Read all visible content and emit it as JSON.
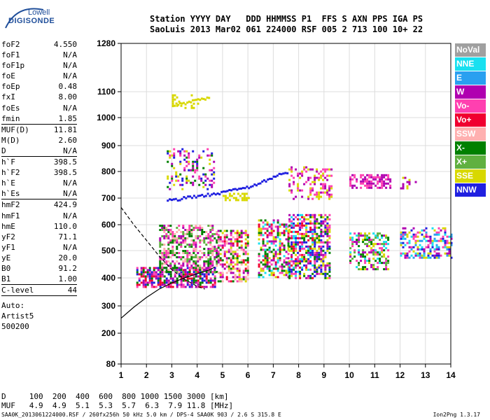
{
  "logo": {
    "line1": "Lowell",
    "line2": "DIGISONDE"
  },
  "header": {
    "row1": "Station YYYY DAY   DDD HHMMSS P1  FFS S AXN PPS IGA PS",
    "row2": "SaoLuis 2013 Mar02 061 224000 RSF 005 2 713 100 10+ 22"
  },
  "params_groups": [
    [
      {
        "key": "foF2",
        "value": "4.550"
      },
      {
        "key": "foF1",
        "value": "N/A"
      },
      {
        "key": "foF1p",
        "value": "N/A"
      },
      {
        "key": "foE",
        "value": "N/A"
      },
      {
        "key": "foEp",
        "value": "0.48"
      },
      {
        "key": "fxI",
        "value": "8.00"
      },
      {
        "key": "foEs",
        "value": "N/A"
      },
      {
        "key": "fmin",
        "value": "1.85"
      }
    ],
    [
      {
        "key": "MUF(D)",
        "value": "11.81"
      },
      {
        "key": "M(D)",
        "value": "2.60"
      },
      {
        "key": "D",
        "value": "N/A"
      }
    ],
    [
      {
        "key": "h`F",
        "value": "398.5"
      },
      {
        "key": "h`F2",
        "value": "398.5"
      },
      {
        "key": "h`E",
        "value": "N/A"
      },
      {
        "key": "h`Es",
        "value": "N/A"
      }
    ],
    [
      {
        "key": "hmF2",
        "value": "424.9"
      },
      {
        "key": "hmF1",
        "value": "N/A"
      },
      {
        "key": "hmE",
        "value": "110.0"
      },
      {
        "key": "yF2",
        "value": "71.1"
      },
      {
        "key": "yF1",
        "value": "N/A"
      },
      {
        "key": "yE",
        "value": "20.0"
      },
      {
        "key": "B0",
        "value": "91.2"
      },
      {
        "key": "B1",
        "value": "1.00"
      }
    ],
    [
      {
        "key": "C-level",
        "value": "44"
      }
    ]
  ],
  "autoscale": {
    "line1": "Auto:",
    "line2": "Artist5",
    "line3": "500200"
  },
  "legend": [
    {
      "label": "NoVal",
      "color": "#a0a0a0"
    },
    {
      "label": "NNE",
      "color": "#18e0f0"
    },
    {
      "label": "E",
      "color": "#2aa0f0"
    },
    {
      "label": "W",
      "color": "#b000b0"
    },
    {
      "label": "Vo-",
      "color": "#ff40b0"
    },
    {
      "label": "Vo+",
      "color": "#f00030"
    },
    {
      "label": "SSW",
      "color": "#ffb0b0"
    },
    {
      "label": "X-",
      "color": "#008000"
    },
    {
      "label": "X+",
      "color": "#60b040"
    },
    {
      "label": "SSE",
      "color": "#d8d800"
    },
    {
      "label": "NNW",
      "color": "#2020e0"
    }
  ],
  "bottom": {
    "row1": "D     100  200  400  600  800 1000 1500 3000 [km]",
    "row2": "MUF   4.9  4.9  5.1  5.3  5.7  6.3  7.9 11.8 [MHz]"
  },
  "footer": "SAA0K_2013061224000.RSF / 260fx256h 50 kHz 5.0 km / DPS-4 SAA0K 903 / 2.6 S 315.8 E",
  "version": "Ion2Png 1.3.17",
  "chart_data": {
    "type": "scatter",
    "xlim": [
      1,
      14
    ],
    "ylim": [
      80,
      1280
    ],
    "x_ticks": [
      1,
      2,
      3,
      4,
      5,
      6,
      7,
      8,
      9,
      10,
      11,
      12,
      13,
      14
    ],
    "y_ticks": [
      80,
      200,
      300,
      400,
      500,
      600,
      700,
      800,
      900,
      1000,
      1100,
      1280
    ],
    "grid": true,
    "trace_fits": [
      {
        "style": "dashed",
        "x": [
          1.0,
          1.5,
          2.0,
          2.5,
          3.0,
          3.5,
          4.0,
          4.3
        ],
        "y": [
          665,
          600,
          540,
          480,
          430,
          395,
          370,
          360
        ]
      },
      {
        "style": "solid",
        "x": [
          1.0,
          1.5,
          2.0,
          2.5,
          3.0,
          3.5,
          4.0,
          4.5,
          4.7
        ],
        "y": [
          255,
          295,
          330,
          360,
          382,
          400,
          415,
          430,
          440
        ]
      }
    ],
    "echo_clusters": [
      {
        "x": [
          1.6,
          4.7
        ],
        "y": [
          370,
          440
        ],
        "colors": [
          "W",
          "Vo-",
          "Vo+",
          "X-",
          "NNW"
        ],
        "density": 0.7
      },
      {
        "x": [
          2.5,
          4.8
        ],
        "y": [
          420,
          600
        ],
        "colors": [
          "Vo-",
          "W",
          "SSW",
          "X-",
          "X+"
        ],
        "density": 0.55
      },
      {
        "x": [
          4.8,
          6.0
        ],
        "y": [
          390,
          580
        ],
        "colors": [
          "Vo-",
          "Vo+",
          "W",
          "SSW",
          "SSE",
          "X-"
        ],
        "density": 0.55
      },
      {
        "x": [
          6.4,
          7.6
        ],
        "y": [
          400,
          620
        ],
        "colors": [
          "Vo-",
          "Vo+",
          "SSE",
          "W",
          "NNE",
          "X-"
        ],
        "density": 0.55
      },
      {
        "x": [
          7.6,
          8.6
        ],
        "y": [
          400,
          640
        ],
        "colors": [
          "Vo-",
          "Vo+",
          "SSE",
          "W",
          "X-",
          "NNE",
          "NNW"
        ],
        "density": 0.6
      },
      {
        "x": [
          8.6,
          9.2
        ],
        "y": [
          400,
          640
        ],
        "colors": [
          "Vo-",
          "SSE",
          "W",
          "X-",
          "NNW"
        ],
        "density": 0.55
      },
      {
        "x": [
          10.0,
          11.5
        ],
        "y": [
          430,
          570
        ],
        "colors": [
          "NNE",
          "X-",
          "X+",
          "Vo-",
          "W",
          "SSE"
        ],
        "density": 0.45
      },
      {
        "x": [
          12.0,
          14.0
        ],
        "y": [
          470,
          590
        ],
        "colors": [
          "NNE",
          "E",
          "W",
          "Vo-",
          "SSE",
          "NNW"
        ],
        "density": 0.5
      },
      {
        "x": [
          2.8,
          4.7
        ],
        "y": [
          730,
          890
        ],
        "colors": [
          "W",
          "NNW",
          "SSE",
          "X-",
          "Vo-"
        ],
        "density": 0.25
      },
      {
        "x": [
          3.0,
          4.0
        ],
        "y": [
          1040,
          1090
        ],
        "colors": [
          "SSE"
        ],
        "density": 0.2
      },
      {
        "x": [
          7.6,
          9.3
        ],
        "y": [
          700,
          820
        ],
        "colors": [
          "SSE",
          "W",
          "Vo-"
        ],
        "density": 0.3
      },
      {
        "x": [
          10.0,
          11.6
        ],
        "y": [
          740,
          790
        ],
        "colors": [
          "W",
          "Vo-"
        ],
        "density": 0.6
      },
      {
        "x": [
          12.0,
          12.6
        ],
        "y": [
          740,
          780
        ],
        "colors": [
          "SSE",
          "W"
        ],
        "density": 0.3
      },
      {
        "x": [
          5.0,
          6.0
        ],
        "y": [
          690,
          720
        ],
        "colors": [
          "SSE"
        ],
        "density": 0.6
      }
    ],
    "echo_streaks": [
      {
        "color": "NNW",
        "x": [
          2.8,
          4.0,
          5.0,
          6.0,
          7.2,
          7.6
        ],
        "y": [
          695,
          710,
          725,
          745,
          790,
          800
        ]
      },
      {
        "color": "SSE",
        "x": [
          3.0,
          3.5,
          4.0,
          4.5
        ],
        "y": [
          1050,
          1060,
          1070,
          1080
        ]
      }
    ]
  }
}
